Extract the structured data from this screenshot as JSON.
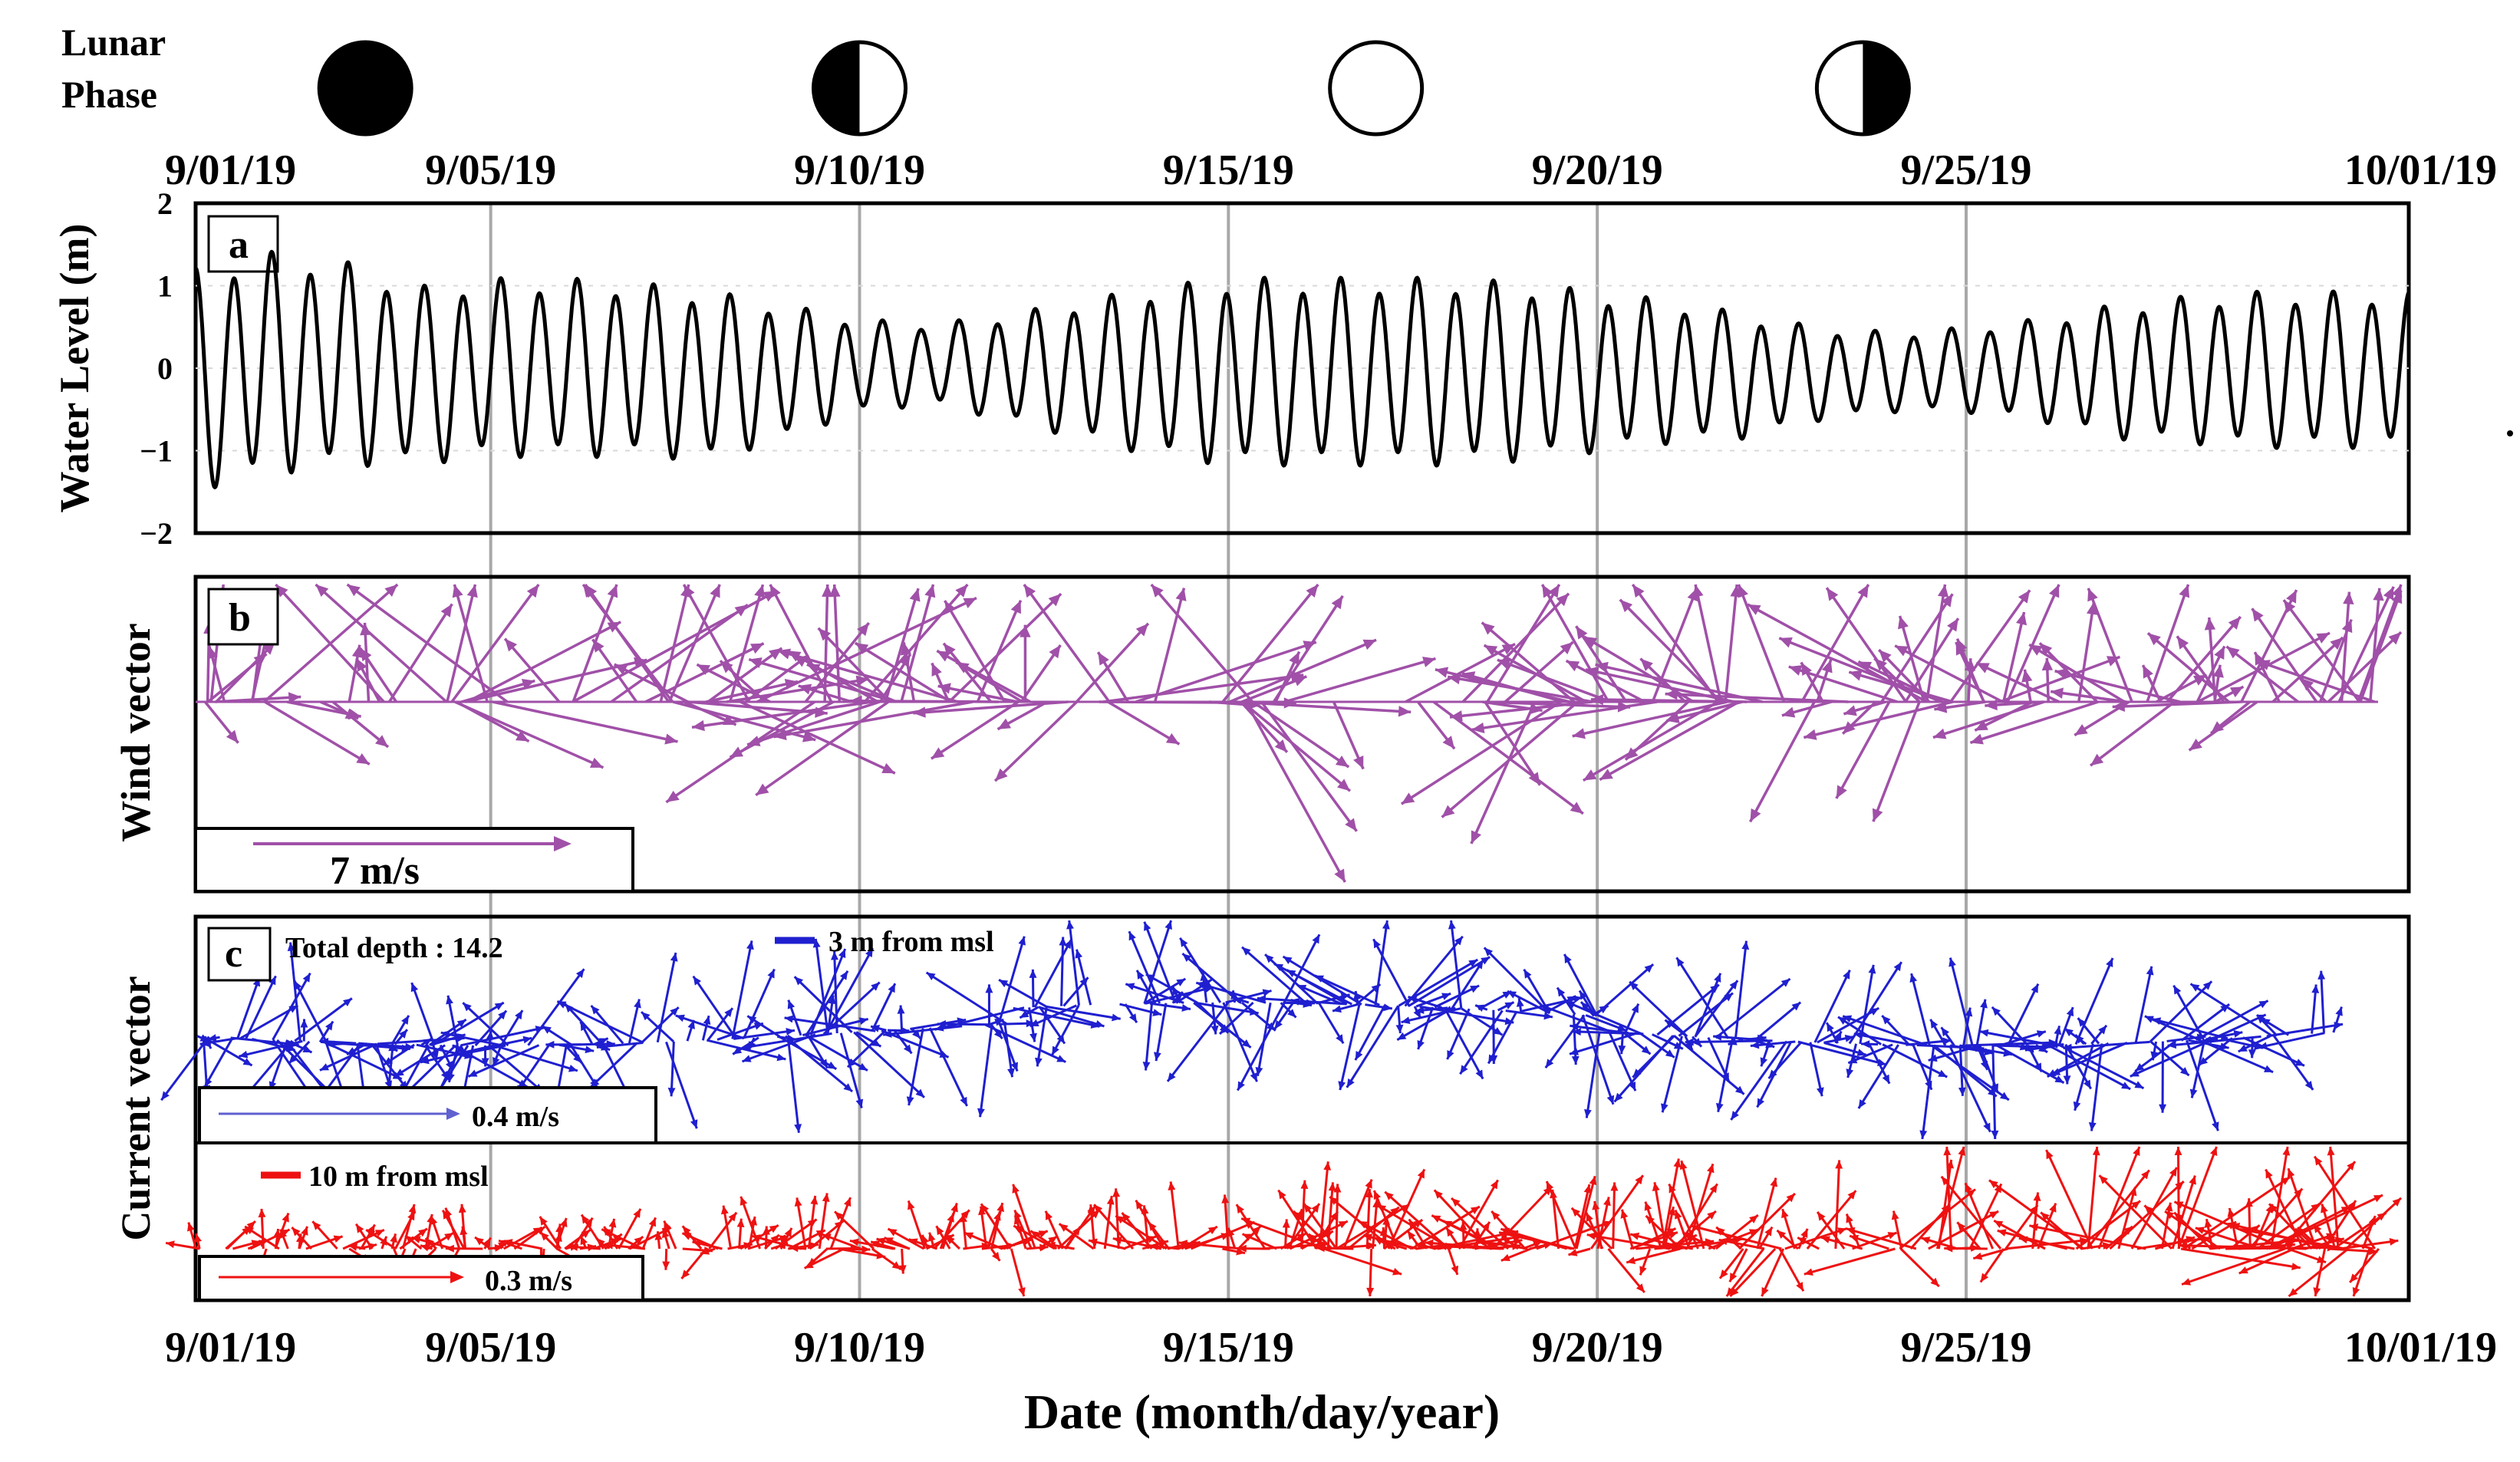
{
  "chart_data": [
    {
      "panel": "a",
      "type": "line",
      "ylabel": "Water Level (m)",
      "ylim": [
        -2,
        2
      ],
      "yticks": [
        "2",
        "1",
        "0",
        "−1",
        "−2"
      ],
      "x_range_days": [
        1,
        31
      ],
      "series": [
        {
          "name": "water level",
          "color": "#000000",
          "tide_period_hours": 12.42,
          "envelope_days": [
            1,
            2,
            3,
            4,
            5,
            6,
            7,
            8,
            9,
            10,
            11,
            12,
            13,
            14,
            15,
            16,
            17,
            18,
            19,
            20,
            21,
            22,
            23,
            24,
            25,
            26,
            27,
            28,
            29,
            30,
            31
          ],
          "high_water_m": [
            1.1,
            1.3,
            1.2,
            0.9,
            1.0,
            1.0,
            0.95,
            0.85,
            0.7,
            0.55,
            0.5,
            0.6,
            0.75,
            0.9,
            1.0,
            1.0,
            1.0,
            1.0,
            0.95,
            0.85,
            0.75,
            0.6,
            0.45,
            0.4,
            0.45,
            0.55,
            0.7,
            0.8,
            0.85,
            0.85,
            0.85
          ],
          "low_water_m": [
            -1.4,
            -1.2,
            -1.1,
            -1.1,
            -1.0,
            -1.0,
            -1.0,
            -1.05,
            -0.8,
            -0.5,
            -0.4,
            -0.6,
            -0.8,
            -1.0,
            -1.1,
            -1.1,
            -1.1,
            -1.1,
            -1.05,
            -0.95,
            -0.85,
            -0.8,
            -0.6,
            -0.5,
            -0.5,
            -0.6,
            -0.8,
            -0.85,
            -0.9,
            -0.9,
            -0.9
          ]
        }
      ]
    },
    {
      "panel": "b",
      "type": "vector",
      "ylabel": "Wind vector",
      "series": [
        {
          "name": "wind",
          "color": "#a050a8",
          "scale_m_s": 7,
          "scale_label": "7 m/s",
          "segment_days": [
            1,
            4,
            9,
            13,
            19,
            25
          ],
          "segment_mean_speed_m_s": [
            5.5,
            7.5,
            6.0,
            6.5,
            6.0,
            4.5
          ],
          "segment_mean_direction_deg": [
            45,
            20,
            315,
            60,
            300,
            330
          ]
        }
      ]
    },
    {
      "panel": "c",
      "type": "vector",
      "ylabel": "Current vector",
      "annotation": "Total depth : 14.2",
      "series": [
        {
          "name": "3 m from msl",
          "color": "#1f1fd0",
          "scale_m_s": 0.4,
          "scale_label": "0.4 m/s",
          "typical_speed_m_s": 0.25
        },
        {
          "name": "10 m from msl",
          "color": "#ee1111",
          "scale_m_s": 0.3,
          "scale_label": "0.3 m/s",
          "typical_speed_m_s": [
            0.08,
            0.08,
            0.1,
            0.12,
            0.15,
            0.16,
            0.2,
            0.22
          ]
        }
      ]
    }
  ],
  "lunar_phase": {
    "label_line1": "Lunar",
    "label_line2": "Phase",
    "phases": [
      {
        "name": "new-moon",
        "day": 3.3
      },
      {
        "name": "first-quarter",
        "day": 10.0
      },
      {
        "name": "full-moon",
        "day": 17.0
      },
      {
        "name": "last-quarter",
        "day": 23.6
      }
    ]
  },
  "date_ticks": [
    {
      "label": "9/01/19",
      "day": 1
    },
    {
      "label": "9/05/19",
      "day": 5
    },
    {
      "label": "9/10/19",
      "day": 10
    },
    {
      "label": "9/15/19",
      "day": 15
    },
    {
      "label": "9/20/19",
      "day": 20
    },
    {
      "label": "9/25/19",
      "day": 25
    },
    {
      "label": "10/01/19",
      "day": 31
    }
  ],
  "xlabel": "Date (month/day/year)",
  "colors": {
    "water": "#000000",
    "wind": "#a050a8",
    "current_3m": "#1f1fd0",
    "current_10m": "#ee1111",
    "gridline": "#a8a8a8"
  }
}
